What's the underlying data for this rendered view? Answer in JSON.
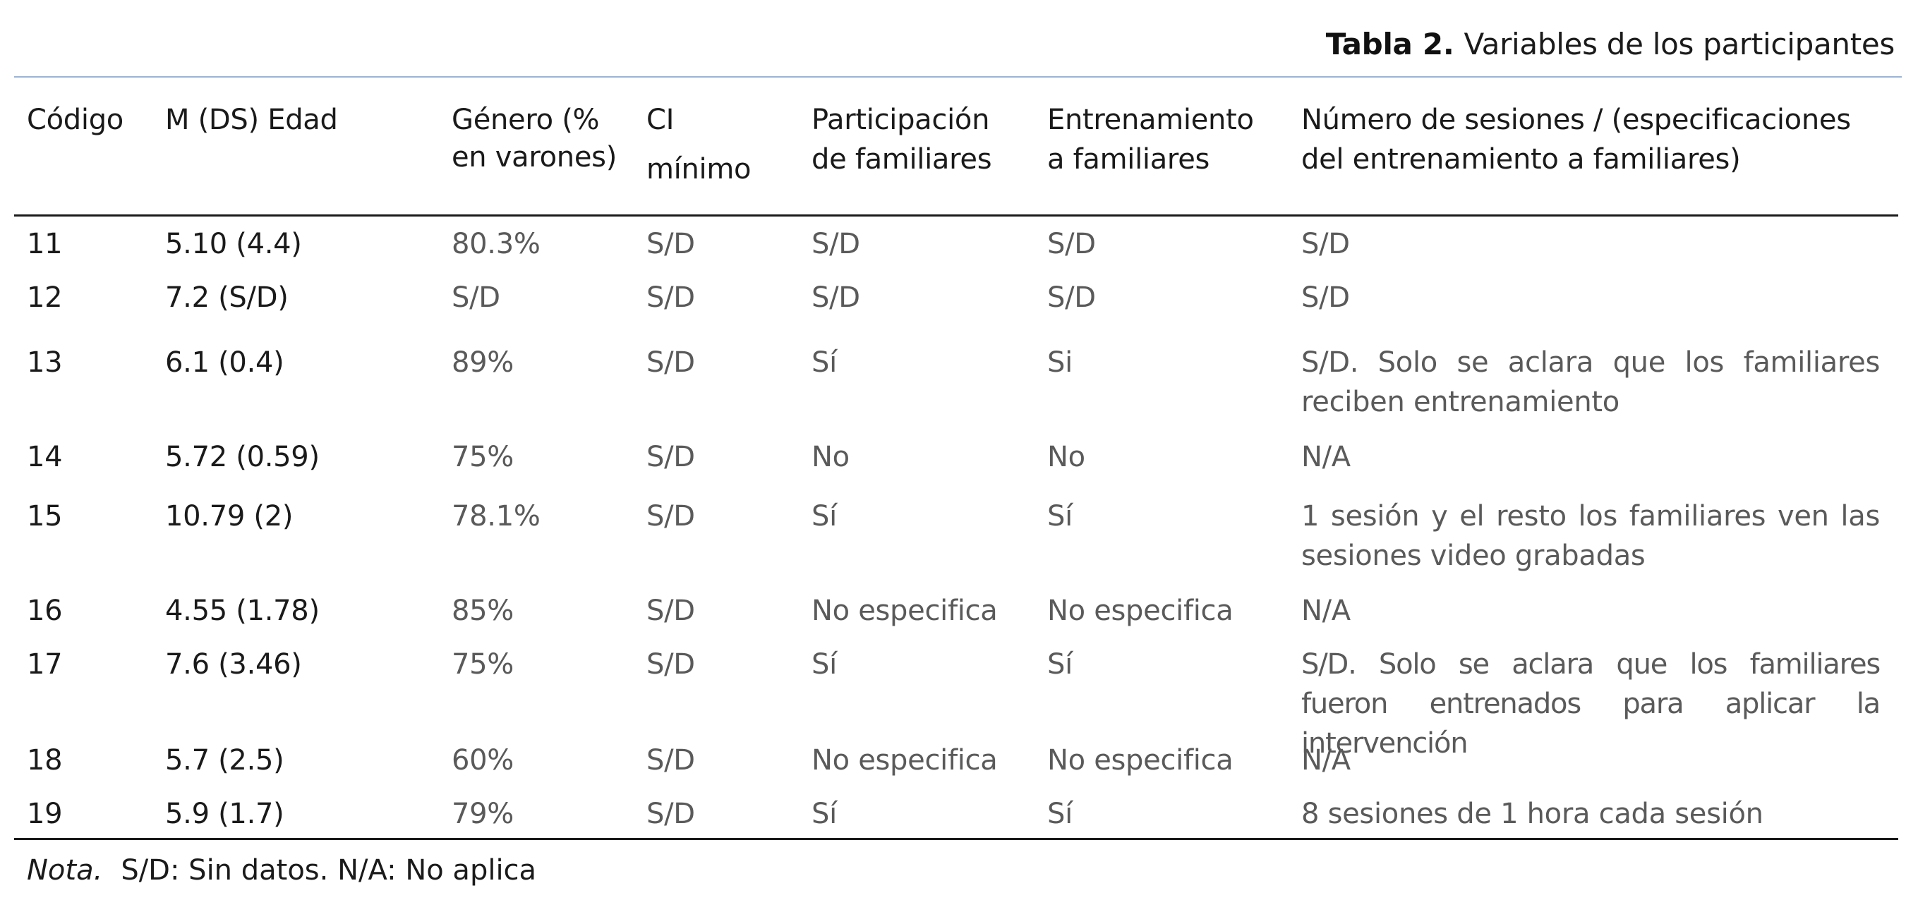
{
  "table": {
    "caption_label": "Tabla 2.",
    "caption_title": "Variables de los participantes",
    "headers": {
      "code": "Código",
      "age": "M (DS) Edad",
      "gender_1": "Género (%",
      "gender_2": "en varones)",
      "ci_1": "CI",
      "ci_2": "mínimo",
      "participation_1": "Participación",
      "participation_2": "de familiares",
      "training_1": "Entrenamiento",
      "training_2": "a familiares",
      "sessions_1": "Número de sesiones / (especificaciones",
      "sessions_2": "del entrenamiento a familiares)"
    },
    "rows": [
      {
        "code": "11",
        "age": "5.10 (4.4)",
        "gender": "80.3%",
        "ci": "S/D",
        "participation": "S/D",
        "training": "S/D",
        "sessions": "S/D"
      },
      {
        "code": "12",
        "age": "7.2 (S/D)",
        "gender": "S/D",
        "ci": "S/D",
        "participation": "S/D",
        "training": "S/D",
        "sessions": "S/D"
      },
      {
        "code": "13",
        "age": "6.1 (0.4)",
        "gender": "89%",
        "ci": "S/D",
        "participation": "Sí",
        "training": "Si",
        "sessions": "S/D. Solo se aclara que los familiares reciben entrenamiento"
      },
      {
        "code": "14",
        "age": "5.72 (0.59)",
        "gender": "75%",
        "ci": "S/D",
        "participation": "No",
        "training": "No",
        "sessions": "N/A"
      },
      {
        "code": "15",
        "age": "10.79 (2)",
        "gender": "78.1%",
        "ci": "S/D",
        "participation": "Sí",
        "training": "Sí",
        "sessions": "1 sesión y el resto los familiares ven las sesiones video grabadas"
      },
      {
        "code": "16",
        "age": "4.55 (1.78)",
        "gender": "85%",
        "ci": "S/D",
        "participation": "No especifica",
        "training": "No especifica",
        "sessions": "N/A"
      },
      {
        "code": "17",
        "age": "7.6 (3.46)",
        "gender": "75%",
        "ci": "S/D",
        "participation": "Sí",
        "training": "Sí",
        "sessions": "S/D. Solo se aclara que los familiares fueron entrenados para aplicar la intervención"
      },
      {
        "code": "18",
        "age": "5.7 (2.5)",
        "gender": "60%",
        "ci": "S/D",
        "participation": "No especifica",
        "training": "No especifica",
        "sessions": "N/A"
      },
      {
        "code": "19",
        "age": "5.9 (1.7)",
        "gender": "79%",
        "ci": "S/D",
        "participation": "Sí",
        "training": "Sí",
        "sessions": "8 sesiones de 1 hora cada sesión"
      }
    ],
    "note_label": "Nota.",
    "note_text": "S/D: Sin datos. N/A: No aplica"
  }
}
